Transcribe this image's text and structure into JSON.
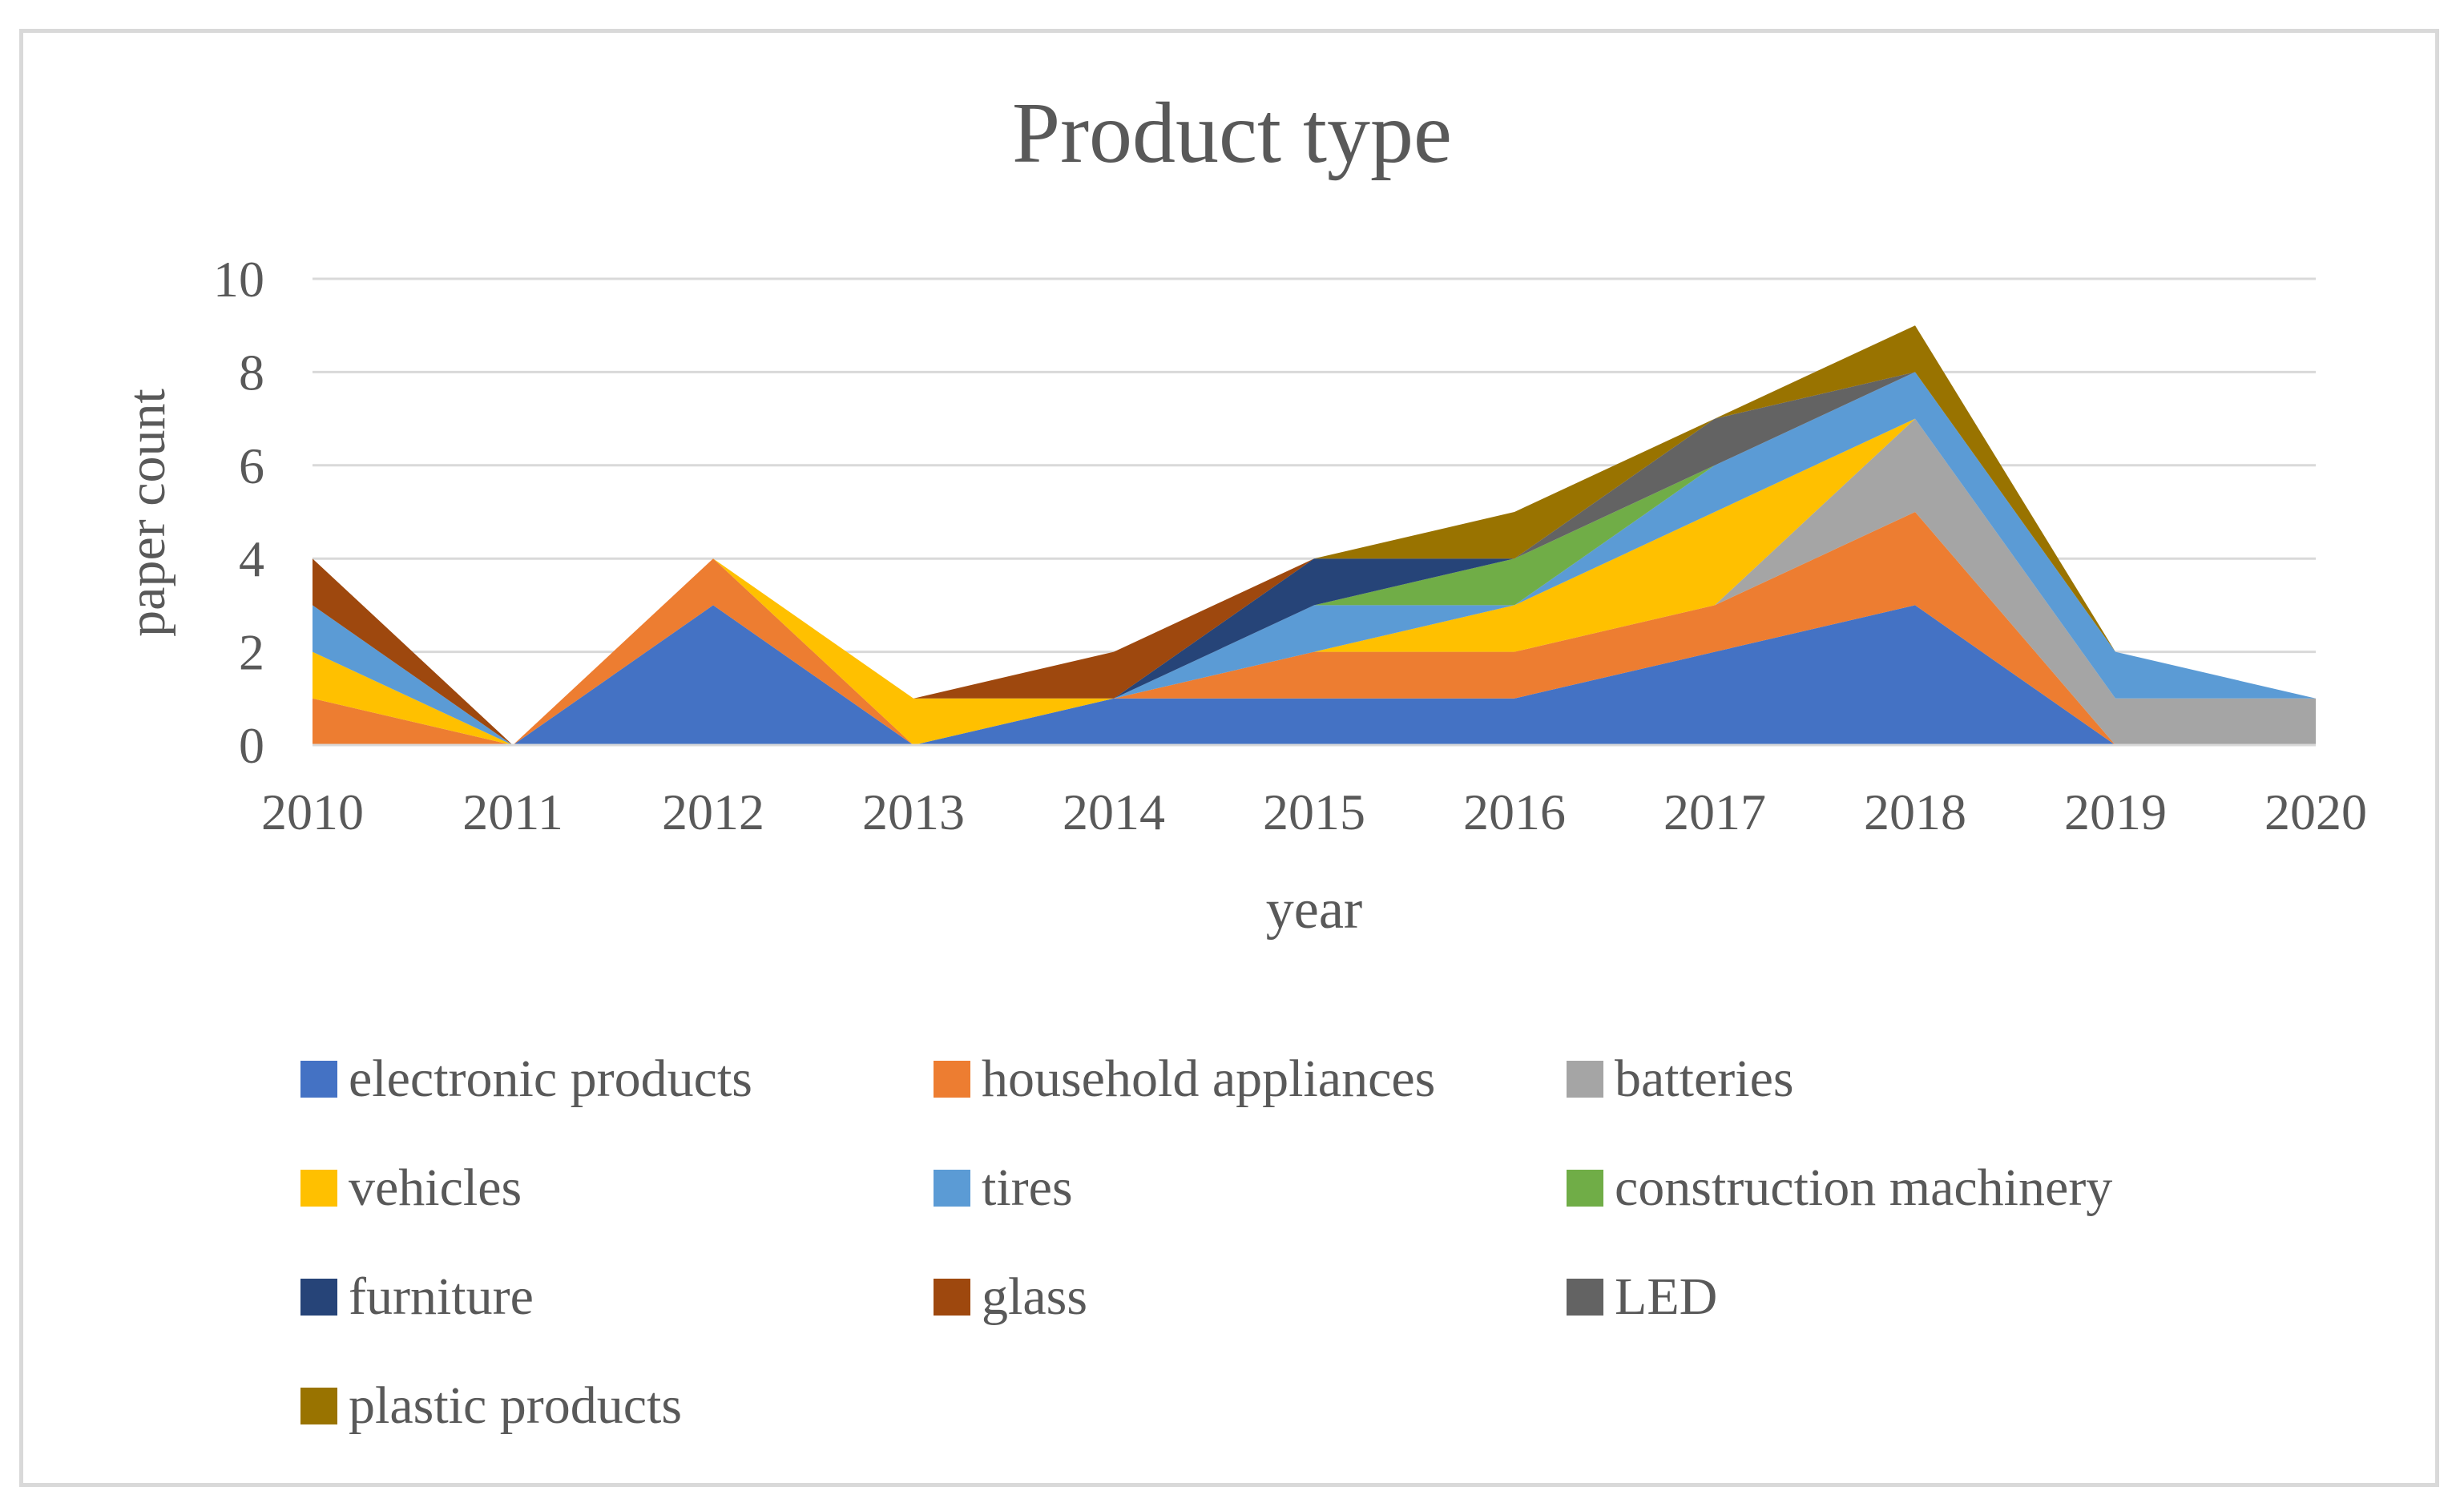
{
  "chart_data": {
    "type": "area",
    "stacked": true,
    "title": "Product type",
    "xlabel": "year",
    "ylabel": "paper count",
    "ylim": [
      0,
      10
    ],
    "yticks": [
      "0",
      "2",
      "4",
      "6",
      "8",
      "10"
    ],
    "categories": [
      "2010",
      "2011",
      "2012",
      "2013",
      "2014",
      "2015",
      "2016",
      "2017",
      "2018",
      "2019",
      "2020"
    ],
    "grid": true,
    "legend_position": "bottom",
    "series": [
      {
        "name": "electronic products",
        "color": "#4472C4",
        "values": [
          0,
          0,
          3,
          0,
          1,
          1,
          1,
          2,
          3,
          0,
          0
        ]
      },
      {
        "name": "household appliances",
        "color": "#ED7D31",
        "values": [
          1,
          0,
          1,
          0,
          0,
          1,
          1,
          1,
          2,
          0,
          0
        ]
      },
      {
        "name": "batteries",
        "color": "#A5A5A5",
        "values": [
          0,
          0,
          0,
          0,
          0,
          0,
          0,
          0,
          2,
          1,
          1
        ]
      },
      {
        "name": "vehicles",
        "color": "#FFC000",
        "values": [
          1,
          0,
          0,
          1,
          0,
          0,
          1,
          2,
          0,
          0,
          0
        ]
      },
      {
        "name": "tires",
        "color": "#5B9BD5",
        "values": [
          1,
          0,
          0,
          0,
          0,
          1,
          0,
          1,
          1,
          1,
          0
        ]
      },
      {
        "name": "construction machinery",
        "color": "#70AD47",
        "values": [
          0,
          0,
          0,
          0,
          0,
          0,
          1,
          0,
          0,
          0,
          0
        ]
      },
      {
        "name": "furniture",
        "color": "#264478",
        "values": [
          0,
          0,
          0,
          0,
          0,
          1,
          0,
          0,
          0,
          0,
          0
        ]
      },
      {
        "name": "glass",
        "color": "#9E480E",
        "values": [
          1,
          0,
          0,
          0,
          1,
          0,
          0,
          0,
          0,
          0,
          0
        ]
      },
      {
        "name": "LED",
        "color": "#636363",
        "values": [
          0,
          0,
          0,
          0,
          0,
          0,
          0,
          1,
          0,
          0,
          0
        ]
      },
      {
        "name": "plastic products",
        "color": "#997300",
        "values": [
          0,
          0,
          0,
          0,
          0,
          0,
          1,
          0,
          1,
          0,
          0
        ]
      }
    ]
  }
}
